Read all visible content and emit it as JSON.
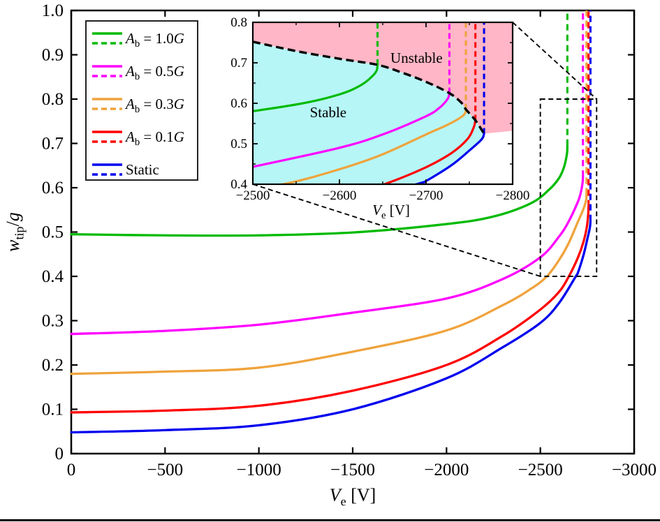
{
  "figure": {
    "description": "Tip deflection ratio versus excitation voltage with pull-in instability inset",
    "background": "#ffffff",
    "axis_color": "#000000"
  },
  "chart_data": {
    "type": "line",
    "title": "",
    "xlabel_parts": [
      {
        "t": "V",
        "s": "i"
      },
      {
        "t": "e",
        "s": "sub"
      },
      {
        "t": " [V]",
        "s": ""
      }
    ],
    "ylabel_parts": [
      {
        "t": "w",
        "s": "i"
      },
      {
        "t": "tip",
        "s": "sub"
      },
      {
        "t": "/",
        "s": ""
      },
      {
        "t": "g",
        "s": "i"
      }
    ],
    "x_axis": {
      "range": [
        0,
        -3000
      ],
      "ticks": [
        {
          "v": 0,
          "label": "0"
        },
        {
          "v": -500,
          "label": "−500"
        },
        {
          "v": -1000,
          "label": "−1000"
        },
        {
          "v": -1500,
          "label": "−1500"
        },
        {
          "v": -2000,
          "label": "−2000"
        },
        {
          "v": -2500,
          "label": "−2500"
        },
        {
          "v": -3000,
          "label": "−3000"
        }
      ]
    },
    "y_axis": {
      "range": [
        0,
        1.0
      ],
      "ticks": [
        {
          "v": 0,
          "label": "0"
        },
        {
          "v": 0.1,
          "label": "0.1"
        },
        {
          "v": 0.2,
          "label": "0.2"
        },
        {
          "v": 0.3,
          "label": "0.3"
        },
        {
          "v": 0.4,
          "label": "0.4"
        },
        {
          "v": 0.5,
          "label": "0.5"
        },
        {
          "v": 0.6,
          "label": "0.6"
        },
        {
          "v": 0.7,
          "label": "0.7"
        },
        {
          "v": 0.8,
          "label": "0.8"
        },
        {
          "v": 0.9,
          "label": "0.9"
        },
        {
          "v": 1.0,
          "label": "1.0"
        }
      ]
    },
    "series": [
      {
        "name": "Ab = 1.0G",
        "label_parts": [
          {
            "t": "A",
            "s": "i"
          },
          {
            "t": "b",
            "s": "sub"
          },
          {
            "t": " = 1.0",
            "s": ""
          },
          {
            "t": "G",
            "s": "i"
          }
        ],
        "color": "#00BA00",
        "pull_in_V": -2644,
        "apex_w": 0.695,
        "points": [
          [
            0,
            0.495
          ],
          [
            -500,
            0.4925
          ],
          [
            -1000,
            0.4925
          ],
          [
            -1500,
            0.499
          ],
          [
            -2000,
            0.518
          ],
          [
            -2250,
            0.535
          ],
          [
            -2450,
            0.565
          ],
          [
            -2550,
            0.597
          ],
          [
            -2600,
            0.622
          ],
          [
            -2625,
            0.645
          ],
          [
            -2638,
            0.667
          ],
          [
            -2643,
            0.681
          ],
          [
            -2644,
            0.695
          ]
        ]
      },
      {
        "name": "Ab = 0.5G",
        "label_parts": [
          {
            "t": "A",
            "s": "i"
          },
          {
            "t": "b",
            "s": "sub"
          },
          {
            "t": " = 0.5",
            "s": ""
          },
          {
            "t": "G",
            "s": "i"
          }
        ],
        "color": "#FF00FF",
        "pull_in_V": -2727,
        "apex_w": 0.625,
        "points": [
          [
            0,
            0.27
          ],
          [
            -500,
            0.277
          ],
          [
            -1000,
            0.291
          ],
          [
            -1500,
            0.318
          ],
          [
            -2000,
            0.35
          ],
          [
            -2300,
            0.394
          ],
          [
            -2500,
            0.443
          ],
          [
            -2600,
            0.49
          ],
          [
            -2650,
            0.523
          ],
          [
            -2700,
            0.568
          ],
          [
            -2715,
            0.588
          ],
          [
            -2723,
            0.605
          ],
          [
            -2726,
            0.615
          ],
          [
            -2727,
            0.625
          ]
        ]
      },
      {
        "name": "Ab = 0.3G",
        "label_parts": [
          {
            "t": "A",
            "s": "i"
          },
          {
            "t": "b",
            "s": "sub"
          },
          {
            "t": " = 0.3",
            "s": ""
          },
          {
            "t": "G",
            "s": "i"
          }
        ],
        "color": "#EFA33C",
        "pull_in_V": -2746,
        "apex_w": 0.585,
        "points": [
          [
            0,
            0.18
          ],
          [
            -500,
            0.185
          ],
          [
            -1000,
            0.194
          ],
          [
            -1500,
            0.23
          ],
          [
            -2000,
            0.278
          ],
          [
            -2300,
            0.335
          ],
          [
            -2450,
            0.372
          ],
          [
            -2535,
            0.4
          ],
          [
            -2600,
            0.437
          ],
          [
            -2650,
            0.474
          ],
          [
            -2700,
            0.523
          ],
          [
            -2725,
            0.547
          ],
          [
            -2740,
            0.565
          ],
          [
            -2745,
            0.575
          ],
          [
            -2746,
            0.585
          ]
        ]
      },
      {
        "name": "Ab = 0.1G",
        "label_parts": [
          {
            "t": "A",
            "s": "i"
          },
          {
            "t": "b",
            "s": "sub"
          },
          {
            "t": " = 0.1",
            "s": ""
          },
          {
            "t": "G",
            "s": "i"
          }
        ],
        "color": "#FF0000",
        "pull_in_V": -2757,
        "apex_w": 0.558,
        "points": [
          [
            0,
            0.093
          ],
          [
            -500,
            0.097
          ],
          [
            -1000,
            0.108
          ],
          [
            -1500,
            0.142
          ],
          [
            -2000,
            0.2
          ],
          [
            -2300,
            0.266
          ],
          [
            -2500,
            0.325
          ],
          [
            -2600,
            0.365
          ],
          [
            -2652,
            0.4
          ],
          [
            -2700,
            0.442
          ],
          [
            -2730,
            0.478
          ],
          [
            -2748,
            0.512
          ],
          [
            -2755,
            0.54
          ],
          [
            -2757,
            0.558
          ]
        ]
      },
      {
        "name": "Static",
        "label_parts": [
          {
            "t": "Static",
            "s": ""
          }
        ],
        "color": "#0000EE",
        "pull_in_V": -2767,
        "apex_w": 0.525,
        "points": [
          [
            0,
            0.048
          ],
          [
            -500,
            0.053
          ],
          [
            -1000,
            0.064
          ],
          [
            -1500,
            0.1
          ],
          [
            -2000,
            0.17
          ],
          [
            -2300,
            0.24
          ],
          [
            -2500,
            0.295
          ],
          [
            -2600,
            0.34
          ],
          [
            -2689,
            0.4
          ],
          [
            -2700,
            0.408
          ],
          [
            -2730,
            0.448
          ],
          [
            -2752,
            0.487
          ],
          [
            -2763,
            0.508
          ],
          [
            -2766,
            0.517
          ],
          [
            -2767,
            0.525
          ]
        ]
      }
    ],
    "stability_boundary": {
      "style": "dashed",
      "color": "#000000",
      "points": [
        [
          -2500,
          0.752
        ],
        [
          -2550,
          0.729
        ],
        [
          -2600,
          0.71
        ],
        [
          -2644,
          0.695
        ],
        [
          -2672,
          0.676
        ],
        [
          -2700,
          0.653
        ],
        [
          -2727,
          0.625
        ],
        [
          -2741,
          0.601
        ],
        [
          -2746,
          0.585
        ],
        [
          -2757,
          0.558
        ],
        [
          -2767,
          0.525
        ]
      ]
    },
    "inset": {
      "x_range": [
        -2500,
        -2800
      ],
      "y_range": [
        0.4,
        0.8
      ],
      "xlabel_parts": [
        {
          "t": "V",
          "s": "i"
        },
        {
          "t": "e",
          "s": "sub"
        },
        {
          "t": " [V]",
          "s": ""
        }
      ],
      "x_ticks": [
        {
          "v": -2500,
          "label": "−2500"
        },
        {
          "v": -2600,
          "label": "−2600"
        },
        {
          "v": -2700,
          "label": "−2700"
        },
        {
          "v": -2800,
          "label": "−2800"
        }
      ],
      "y_ticks": [
        {
          "v": 0.4,
          "label": "0.4"
        },
        {
          "v": 0.5,
          "label": "0.5"
        },
        {
          "v": 0.6,
          "label": "0.6"
        },
        {
          "v": 0.7,
          "label": "0.7"
        },
        {
          "v": 0.8,
          "label": "0.8"
        }
      ],
      "x_minor": [
        -2550,
        -2650,
        -2750
      ],
      "y_minor": [
        0.45,
        0.55,
        0.65,
        0.75
      ],
      "regions": {
        "stable": {
          "label": "Stable",
          "fill": "#B6F6F6",
          "label_pos": [
            -2587,
            0.578
          ]
        },
        "unstable": {
          "label": "Unstable",
          "fill": "#FFB6C6",
          "label_pos": [
            -2689,
            0.712
          ]
        }
      },
      "pink_right_bottom_w": 0.532
    },
    "zoom_box": {
      "V_range": [
        -2500,
        -2800
      ],
      "w_range": [
        0.4,
        0.8
      ]
    },
    "connectors": [
      {
        "from": "inset-bottom-left",
        "to": "box-bottom-left"
      },
      {
        "from": "inset-top-right",
        "to": "box-top-right"
      }
    ],
    "legend": {
      "entries_order": [
        "Ab = 1.0G",
        "Ab = 0.5G",
        "Ab = 0.3G",
        "Ab = 0.1G",
        "Static"
      ],
      "line_styles": [
        "solid",
        "dashed"
      ]
    }
  }
}
